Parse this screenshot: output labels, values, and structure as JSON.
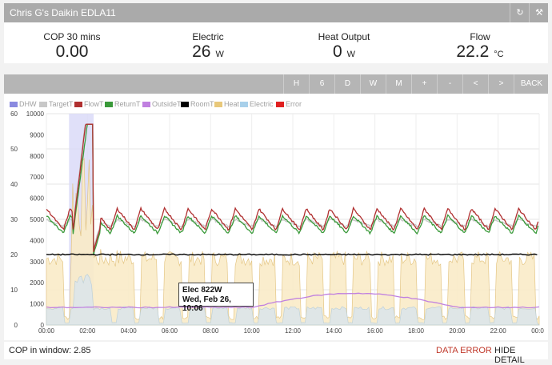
{
  "header": {
    "title": "Chris G's Daikin EDLA11"
  },
  "stats": [
    {
      "label": "COP 30 mins",
      "value": "0.00",
      "unit": ""
    },
    {
      "label": "Electric",
      "value": "26",
      "unit": "W"
    },
    {
      "label": "Heat Output",
      "value": "0",
      "unit": "W"
    },
    {
      "label": "Flow",
      "value": "22.2",
      "unit": "°C"
    }
  ],
  "toolbar": [
    "H",
    "6",
    "D",
    "W",
    "M",
    "+",
    "-",
    "<",
    ">",
    "BACK"
  ],
  "legend": [
    {
      "label": "DHW",
      "color": "#8a8ae0"
    },
    {
      "label": "TargetT",
      "color": "#c8c8c8"
    },
    {
      "label": "FlowT",
      "color": "#b03030"
    },
    {
      "label": "ReturnT",
      "color": "#3a9a3a"
    },
    {
      "label": "OutsideT",
      "color": "#c080e0"
    },
    {
      "label": "RoomT",
      "color": "#000000"
    },
    {
      "label": "Heat",
      "color": "#e8c87a"
    },
    {
      "label": "Electric",
      "color": "#a8d0ea"
    },
    {
      "label": "Error",
      "color": "#e02020"
    }
  ],
  "chart_data": {
    "type": "line",
    "x_ticks": [
      "00:00",
      "02:00",
      "04:00",
      "06:00",
      "08:00",
      "10:00",
      "12:00",
      "14:00",
      "16:00",
      "18:00",
      "20:00",
      "22:00",
      "00:0"
    ],
    "y_left_ticks": [
      0,
      10,
      20,
      30,
      40,
      50,
      60
    ],
    "y_left_range": [
      0,
      60
    ],
    "y_right_ticks": [
      0,
      1000,
      2000,
      3000,
      4000,
      5000,
      6000,
      7000,
      8000,
      9000,
      10000
    ],
    "y_right_range": [
      0,
      10000
    ],
    "hours_range": [
      0,
      24
    ],
    "dhw_window_hours": [
      1.1,
      2.3
    ],
    "series": [
      {
        "name": "FlowT",
        "axis": "left",
        "color": "#b03030",
        "cycle_low": 27,
        "cycle_high": 33
      },
      {
        "name": "ReturnT",
        "axis": "left",
        "color": "#3a9a3a",
        "cycle_low": 26,
        "cycle_high": 31
      },
      {
        "name": "TargetT",
        "axis": "left",
        "color": "#c8c8c8",
        "cycle_low": 28,
        "cycle_high": 30
      },
      {
        "name": "RoomT",
        "axis": "left",
        "color": "#000000",
        "value": 20
      },
      {
        "name": "OutsideT",
        "axis": "left",
        "color": "#c080e0",
        "start": 5,
        "peak": 9
      },
      {
        "name": "Heat",
        "axis": "right",
        "color": "#e8c87a",
        "typical": 3000
      },
      {
        "name": "Electric",
        "axis": "right",
        "color": "#a8d0ea",
        "typical": 800
      }
    ]
  },
  "tooltip": {
    "line1": "Elec 822W",
    "line2": "Wed, Feb 26, 10:06"
  },
  "footer": {
    "cop_label": "COP in window:",
    "cop_value": "2.85",
    "data_error": "DATA ERROR",
    "hide_detail": "HIDE DETAIL"
  }
}
